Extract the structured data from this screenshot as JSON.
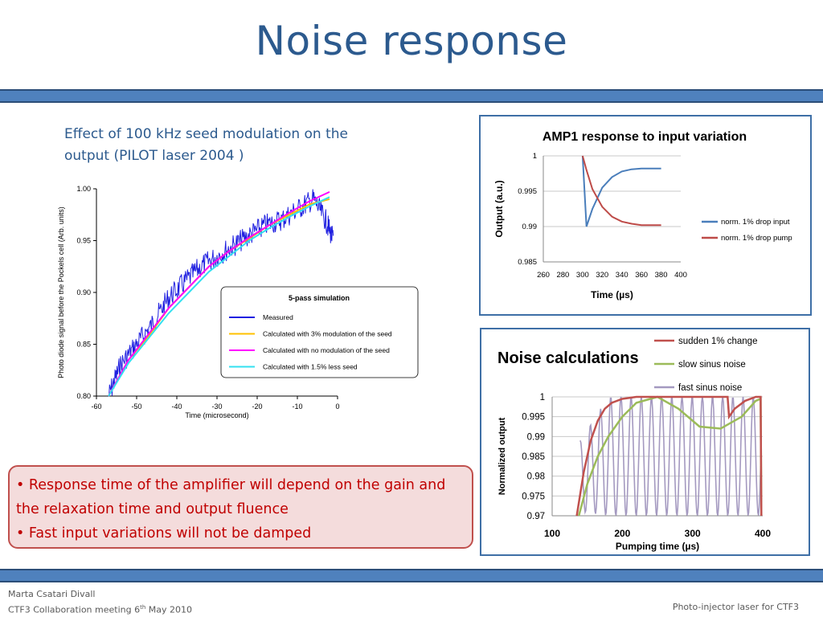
{
  "slide": {
    "title": "Noise response",
    "caption_line1": "Effect of 100 kHz seed modulation on the",
    "caption_line2": "output (PILOT laser 2004 )",
    "bullets": [
      "Response time of the amplifier will depend on the gain and the relaxation time and output fluence",
      "Fast input variations will not be damped"
    ],
    "footer": {
      "author": "Marta Csatari Divall",
      "meeting_prefix": "CTF3 Collaboration meeting 6",
      "meeting_sup": "th",
      "meeting_suffix": " May 2010",
      "right": "Photo-injector laser for CTF3"
    },
    "colors": {
      "title": "#2c5a8e",
      "band": "#4f81bd",
      "callout_text": "#c00000",
      "callout_bg": "#f4dcdc"
    }
  },
  "chart_data": [
    {
      "type": "line",
      "title": "",
      "xlabel": "Time (microsecond)",
      "ylabel": "Photo diode signal before the Pockels cell (Arb. units)",
      "xlim": [
        -60,
        0
      ],
      "ylim": [
        0.8,
        1.0
      ],
      "xticks": [
        "-60",
        "-50",
        "-40",
        "-30",
        "-20",
        "-10",
        "0"
      ],
      "yticks": [
        "0.80",
        "0.85",
        "0.90",
        "0.95",
        "1.00"
      ],
      "legend_title": "5-pass simulation",
      "legend_position": "lower-right",
      "series": [
        {
          "name": "Measured",
          "color": "#1f1fe0",
          "style": "noisy",
          "x": [
            -57,
            -54,
            -50,
            -46,
            -42,
            -38,
            -34,
            -30,
            -26,
            -22,
            -18,
            -14,
            -10,
            -6,
            -3,
            -1
          ],
          "y": [
            0.8,
            0.83,
            0.85,
            0.87,
            0.895,
            0.91,
            0.925,
            0.935,
            0.945,
            0.955,
            0.965,
            0.97,
            0.98,
            0.99,
            0.97,
            0.95
          ]
        },
        {
          "name": "Calculated with 3% modulation of the seed",
          "color": "#ffc000",
          "style": "smooth",
          "x": [
            -57,
            -52,
            -47,
            -42,
            -37,
            -32,
            -27,
            -22,
            -17,
            -12,
            -7,
            -2
          ],
          "y": [
            0.8,
            0.835,
            0.858,
            0.885,
            0.905,
            0.925,
            0.94,
            0.952,
            0.965,
            0.975,
            0.985,
            0.99
          ]
        },
        {
          "name": "Calculated with no modulation of the seed",
          "color": "#ff00ff",
          "style": "smooth",
          "x": [
            -57,
            -52,
            -47,
            -42,
            -37,
            -32,
            -27,
            -22,
            -17,
            -12,
            -7,
            -2
          ],
          "y": [
            0.8,
            0.835,
            0.86,
            0.885,
            0.905,
            0.925,
            0.94,
            0.953,
            0.965,
            0.977,
            0.988,
            0.997
          ]
        },
        {
          "name": "Calculated with 1.5% less seed",
          "color": "#33e0f0",
          "style": "smooth",
          "x": [
            -57,
            -52,
            -47,
            -42,
            -37,
            -32,
            -27,
            -22,
            -17,
            -12,
            -7,
            -2
          ],
          "y": [
            0.8,
            0.832,
            0.856,
            0.88,
            0.9,
            0.92,
            0.935,
            0.95,
            0.962,
            0.973,
            0.983,
            0.992
          ]
        }
      ]
    },
    {
      "type": "line",
      "title": "AMP1 response to input variation",
      "xlabel": "Time (µs)",
      "ylabel": "Output (a.u.)",
      "xlim": [
        260,
        400
      ],
      "ylim": [
        0.985,
        1
      ],
      "xticks": [
        "260",
        "280",
        "300",
        "320",
        "340",
        "360",
        "380",
        "400"
      ],
      "yticks": [
        "0.985",
        "0.99",
        "0.995",
        "1"
      ],
      "legend_position": "right",
      "grid": true,
      "series": [
        {
          "name": "norm. 1% drop input",
          "color": "#4a7ebb",
          "x": [
            300,
            304,
            310,
            320,
            330,
            340,
            350,
            360,
            370,
            380
          ],
          "y": [
            1,
            0.99,
            0.9925,
            0.9955,
            0.997,
            0.9978,
            0.9981,
            0.9982,
            0.9982,
            0.9982
          ]
        },
        {
          "name": "norm. 1% drop pump",
          "color": "#be4b48",
          "x": [
            300,
            304,
            310,
            320,
            330,
            340,
            350,
            360,
            370,
            380
          ],
          "y": [
            1,
            0.998,
            0.9953,
            0.9928,
            0.9914,
            0.9907,
            0.9904,
            0.9902,
            0.9902,
            0.9902
          ]
        }
      ]
    },
    {
      "type": "line",
      "title": "Noise calculations",
      "xlabel": "Pumping time (µs)",
      "ylabel": "Normalized output",
      "xlim": [
        100,
        400
      ],
      "ylim": [
        0.97,
        1
      ],
      "xticks": [
        "100",
        "200",
        "300",
        "400"
      ],
      "yticks": [
        "0.97",
        "0.975",
        "0.98",
        "0.985",
        "0.99",
        "0.995",
        "1"
      ],
      "legend_position": "top-right",
      "grid": true,
      "series": [
        {
          "name": "sudden 1% change",
          "color": "#c0504d",
          "x": [
            135,
            145,
            155,
            165,
            175,
            185,
            200,
            220,
            300,
            350,
            352,
            360,
            375,
            390,
            397,
            398
          ],
          "y": [
            0.97,
            0.981,
            0.989,
            0.994,
            0.997,
            0.9985,
            0.9995,
            1,
            1,
            1,
            0.995,
            0.997,
            0.999,
            1,
            1,
            0.97
          ]
        },
        {
          "name": "slow sinus noise",
          "color": "#9bbb59",
          "x": [
            138,
            150,
            165,
            180,
            200,
            220,
            250,
            280,
            310,
            340,
            370,
            390,
            397,
            398
          ],
          "y": [
            0.97,
            0.978,
            0.985,
            0.99,
            0.995,
            0.9985,
            1,
            0.997,
            0.9925,
            0.992,
            0.995,
            0.999,
            0.9995,
            0.97
          ]
        },
        {
          "name": "fast sinus noise",
          "color": "#a499c0",
          "x": [
            140,
            155,
            170,
            190,
            220,
            260,
            300,
            340,
            380,
            397
          ],
          "y": [
            0.97,
            0.975,
            0.979,
            0.98,
            0.98,
            0.98,
            0.98,
            0.98,
            0.98,
            0.98
          ]
        }
      ]
    }
  ]
}
